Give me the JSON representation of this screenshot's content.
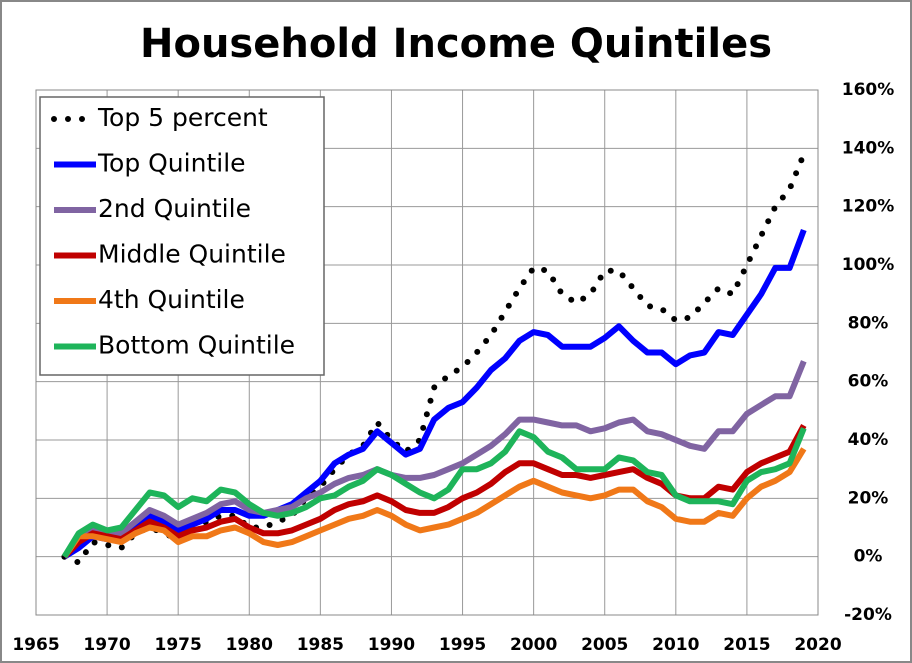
{
  "chart_data": {
    "type": "line",
    "title": "Household Income Quintiles",
    "x": [
      1967,
      1968,
      1969,
      1970,
      1971,
      1972,
      1973,
      1974,
      1975,
      1976,
      1977,
      1978,
      1979,
      1980,
      1981,
      1982,
      1983,
      1984,
      1985,
      1986,
      1987,
      1988,
      1989,
      1990,
      1991,
      1992,
      1993,
      1994,
      1995,
      1996,
      1997,
      1998,
      1999,
      2000,
      2001,
      2002,
      2003,
      2004,
      2005,
      2006,
      2007,
      2008,
      2009,
      2010,
      2011,
      2012,
      2013,
      2014,
      2015,
      2016,
      2017,
      2018,
      2019
    ],
    "xlim": [
      1965,
      2020
    ],
    "xticks": [
      1965,
      1970,
      1975,
      1980,
      1985,
      1990,
      1995,
      2000,
      2005,
      2010,
      2015,
      2020
    ],
    "ylim": [
      -20,
      160
    ],
    "yticks": [
      {
        "value": -20,
        "label": "-20%"
      },
      {
        "value": 0,
        "label": "0%"
      },
      {
        "value": 20,
        "label": "20%"
      },
      {
        "value": 40,
        "label": "40%"
      },
      {
        "value": 60,
        "label": "60%"
      },
      {
        "value": 80,
        "label": "80%"
      },
      {
        "value": 100,
        "label": "100%"
      },
      {
        "value": 120,
        "label": "120%"
      },
      {
        "value": 140,
        "label": "140%"
      },
      {
        "value": 160,
        "label": "160%"
      }
    ],
    "y_axis_side": "right",
    "grid": true,
    "legend": "top-left",
    "series": [
      {
        "name": "Top 5 percent",
        "color": "#000000",
        "style": "dotted",
        "values": [
          0,
          -2,
          5,
          4,
          3,
          8,
          10,
          8,
          6,
          9,
          12,
          14,
          14,
          10,
          10,
          12,
          14,
          20,
          24,
          30,
          35,
          38,
          46,
          40,
          36,
          40,
          58,
          62,
          65,
          70,
          76,
          84,
          92,
          99,
          98,
          90,
          87,
          90,
          98,
          98,
          92,
          86,
          85,
          81,
          82,
          87,
          92,
          90,
          100,
          110,
          120,
          126,
          138
        ]
      },
      {
        "name": "Top Quintile",
        "color": "#0000ff",
        "style": "solid",
        "values": [
          0,
          3,
          7,
          6,
          6,
          11,
          14,
          12,
          9,
          11,
          13,
          16,
          16,
          14,
          14,
          16,
          18,
          22,
          26,
          32,
          35,
          37,
          43,
          39,
          35,
          37,
          47,
          51,
          53,
          58,
          64,
          68,
          74,
          77,
          76,
          72,
          72,
          72,
          75,
          79,
          74,
          70,
          70,
          66,
          69,
          70,
          77,
          76,
          83,
          90,
          99,
          99,
          112
        ]
      },
      {
        "name": "2nd Quintile",
        "color": "#8064a2",
        "style": "solid",
        "values": [
          0,
          6,
          9,
          8,
          8,
          12,
          16,
          14,
          11,
          13,
          15,
          18,
          19,
          16,
          15,
          16,
          17,
          20,
          22,
          25,
          27,
          28,
          30,
          28,
          27,
          27,
          28,
          30,
          32,
          35,
          38,
          42,
          47,
          47,
          46,
          45,
          45,
          43,
          44,
          46,
          47,
          43,
          42,
          40,
          38,
          37,
          43,
          43,
          49,
          52,
          55,
          55,
          67
        ]
      },
      {
        "name": "Middle Quintile",
        "color": "#c00000",
        "style": "solid",
        "values": [
          0,
          5,
          8,
          7,
          6,
          9,
          12,
          10,
          7,
          9,
          10,
          12,
          13,
          10,
          8,
          8,
          9,
          11,
          13,
          16,
          18,
          19,
          21,
          19,
          16,
          15,
          15,
          17,
          20,
          22,
          25,
          29,
          32,
          32,
          30,
          28,
          28,
          27,
          28,
          29,
          30,
          27,
          25,
          21,
          20,
          20,
          24,
          23,
          29,
          32,
          34,
          36,
          45
        ]
      },
      {
        "name": "4th Quintile",
        "color": "#f07818",
        "style": "solid",
        "values": [
          0,
          7,
          7,
          6,
          5,
          8,
          10,
          9,
          5,
          7,
          7,
          9,
          10,
          8,
          5,
          4,
          5,
          7,
          9,
          11,
          13,
          14,
          16,
          14,
          11,
          9,
          10,
          11,
          13,
          15,
          18,
          21,
          24,
          26,
          24,
          22,
          21,
          20,
          21,
          23,
          23,
          19,
          17,
          13,
          12,
          12,
          15,
          14,
          20,
          24,
          26,
          29,
          37
        ]
      },
      {
        "name": "Bottom Quintile",
        "color": "#1eb45a",
        "style": "solid",
        "values": [
          0,
          8,
          11,
          9,
          10,
          16,
          22,
          21,
          17,
          20,
          19,
          23,
          22,
          18,
          15,
          14,
          15,
          17,
          20,
          21,
          24,
          26,
          30,
          28,
          25,
          22,
          20,
          23,
          30,
          30,
          32,
          36,
          43,
          41,
          36,
          34,
          30,
          30,
          30,
          34,
          33,
          29,
          28,
          21,
          19,
          19,
          19,
          18,
          26,
          29,
          30,
          32,
          44
        ]
      }
    ]
  }
}
